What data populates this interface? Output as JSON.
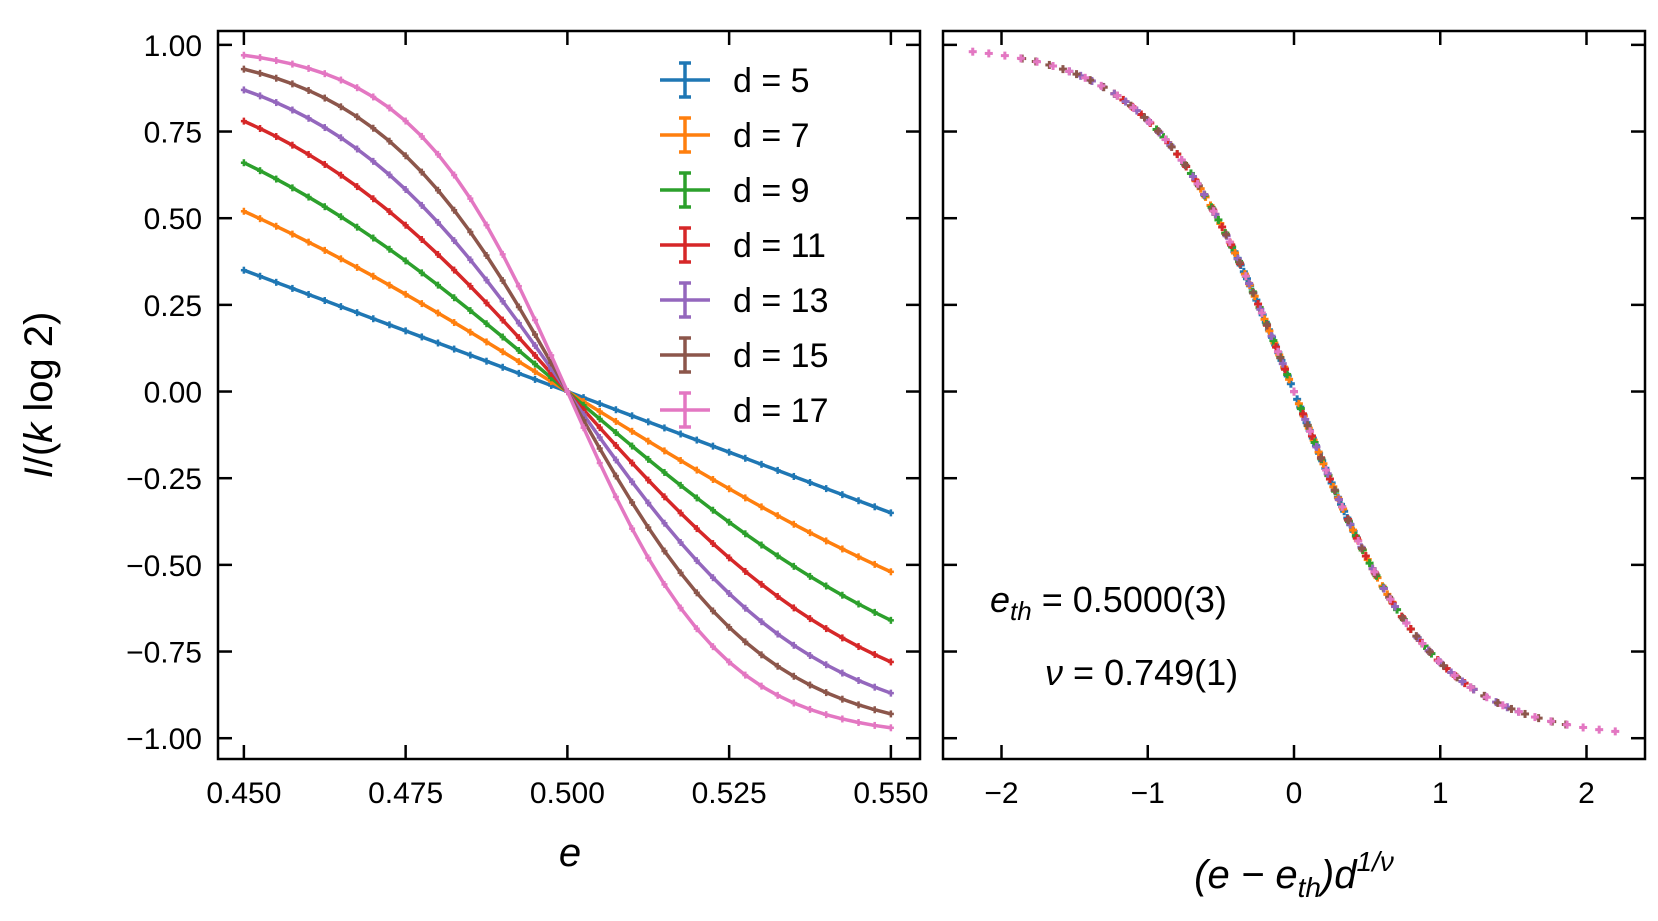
{
  "chart_data": [
    {
      "type": "line",
      "panel": "left",
      "xlabel": "e",
      "ylabel": "I/(k log 2)",
      "xlim": [
        0.446,
        0.5545
      ],
      "ylim": [
        -1.06,
        1.04
      ],
      "xticks": [
        0.45,
        0.475,
        0.5,
        0.525,
        0.55
      ],
      "xtick_labels": [
        "0.450",
        "0.475",
        "0.500",
        "0.525",
        "0.550"
      ],
      "yticks": [
        1.0,
        0.75,
        0.5,
        0.25,
        0.0,
        -0.25,
        -0.5,
        -0.75,
        -1.0
      ],
      "ytick_labels": [
        "1.00",
        "0.75",
        "0.50",
        "0.25",
        "0.00",
        "−0.25",
        "−0.50",
        "−0.75",
        "−1.00"
      ],
      "x_range": [
        0.45,
        0.55
      ],
      "points_per_series": 41,
      "legend": {
        "position": "top-right",
        "prefix": "d",
        "separator": " = "
      },
      "series": [
        {
          "name": "d = 5",
          "d": 5,
          "color": "#1f77b4",
          "endpoints": [
            0.35,
            -0.35
          ],
          "shape": "linear"
        },
        {
          "name": "d = 7",
          "d": 7,
          "color": "#ff7f0e",
          "endpoints": [
            0.52,
            -0.52
          ],
          "shape": "sigmoid"
        },
        {
          "name": "d = 9",
          "d": 9,
          "color": "#2ca02c",
          "endpoints": [
            0.66,
            -0.66
          ],
          "shape": "sigmoid"
        },
        {
          "name": "d = 11",
          "d": 11,
          "color": "#d62728",
          "endpoints": [
            0.78,
            -0.78
          ],
          "shape": "sigmoid"
        },
        {
          "name": "d = 13",
          "d": 13,
          "color": "#9467bd",
          "endpoints": [
            0.87,
            -0.87
          ],
          "shape": "sigmoid"
        },
        {
          "name": "d = 15",
          "d": 15,
          "color": "#8c564b",
          "endpoints": [
            0.93,
            -0.93
          ],
          "shape": "sigmoid"
        },
        {
          "name": "d = 17",
          "d": 17,
          "color": "#e377c2",
          "endpoints": [
            0.97,
            -0.97
          ],
          "shape": "sigmoid"
        }
      ]
    },
    {
      "type": "scatter",
      "panel": "right",
      "xlabel": "(e − e_th) d^(1/ν)",
      "xlim": [
        -2.4,
        2.4
      ],
      "ylim": [
        -1.06,
        1.04
      ],
      "xticks": [
        -2,
        -1,
        0,
        1,
        2
      ],
      "xtick_labels": [
        "−2",
        "−1",
        "0",
        "1",
        "2"
      ],
      "e_th": 0.5,
      "nu": 0.749,
      "collapse_curve": "tanh(-1.05 x)",
      "annotations": {
        "eth_value": "0.5000(3)",
        "nu_value": "0.749(1)",
        "equals": "="
      }
    }
  ]
}
